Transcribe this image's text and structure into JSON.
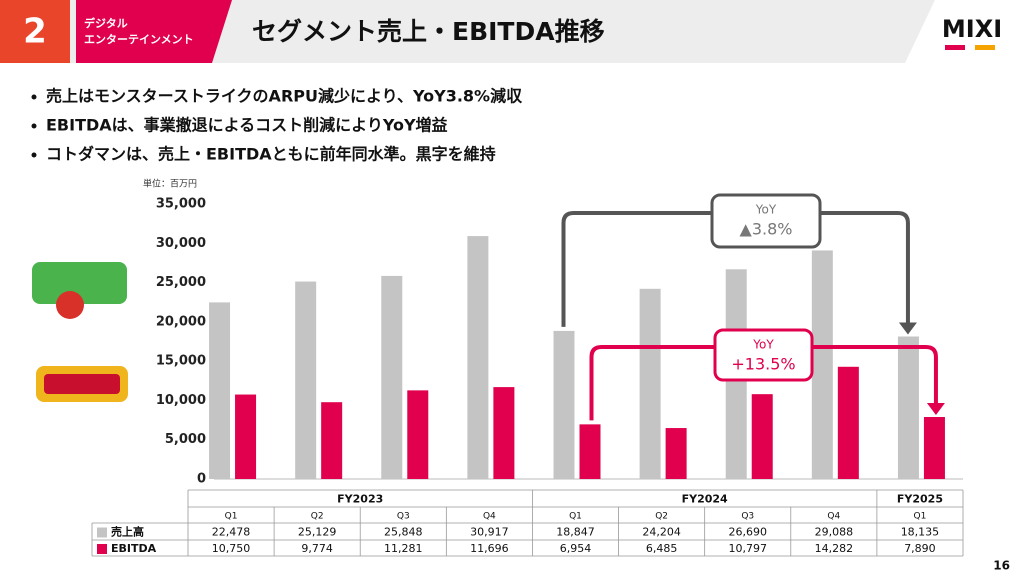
{
  "header": {
    "section_number": "2",
    "section_name": [
      "デジタル",
      "エンターテインメント"
    ],
    "title": "セグメント売上・EBITDA推移",
    "logo": "MIXI"
  },
  "bullets": [
    "売上はモンスターストライクのARPU減少により、YoY3.8%減収",
    "EBITDAは、事業撤退によるコスト削減によりYoY増益",
    "コトダマンは、売上・EBITDAともに前年同水準。黒字を維持"
  ],
  "page_number": "16",
  "chart_data": {
    "type": "bar",
    "unit_label": "単位：百万円",
    "group_labels": [
      "FY2023",
      "FY2024",
      "FY2025"
    ],
    "categories": [
      "Q1",
      "Q2",
      "Q3",
      "Q4",
      "Q1",
      "Q2",
      "Q3",
      "Q4",
      "Q1"
    ],
    "series": [
      {
        "name": "売上高",
        "color": "#c4c4c4",
        "values": [
          22478,
          25129,
          25848,
          30917,
          18847,
          24204,
          26690,
          29088,
          18135
        ],
        "value_labels": [
          "22,478",
          "25,129",
          "25,848",
          "30,917",
          "18,847",
          "24,204",
          "26,690",
          "29,088",
          "18,135"
        ]
      },
      {
        "name": "EBITDA",
        "color": "#e0004d",
        "values": [
          10750,
          9774,
          11281,
          11696,
          6954,
          6485,
          10797,
          14282,
          7890
        ],
        "value_labels": [
          "10,750",
          "9,774",
          "11,281",
          "11,696",
          "6,954",
          "6,485",
          "10,797",
          "14,282",
          "7,890"
        ]
      }
    ],
    "ylim": [
      0,
      35000
    ],
    "yticks": [
      0,
      {
        "value": 5000,
        "label": "5,000"
      },
      {
        "value": 10000,
        "label": "10,000"
      },
      {
        "value": 15000,
        "label": "15,000"
      },
      {
        "value": 20000,
        "label": "20,000"
      },
      {
        "value": 25000,
        "label": "25,000"
      },
      {
        "value": 30000,
        "label": "30,000"
      },
      {
        "value": 35000,
        "label": "35,000"
      }
    ],
    "annotations": [
      {
        "title": "YoY",
        "text": "▲3.8%"
      },
      {
        "title": "YoY",
        "text": "+13.5%"
      }
    ]
  }
}
